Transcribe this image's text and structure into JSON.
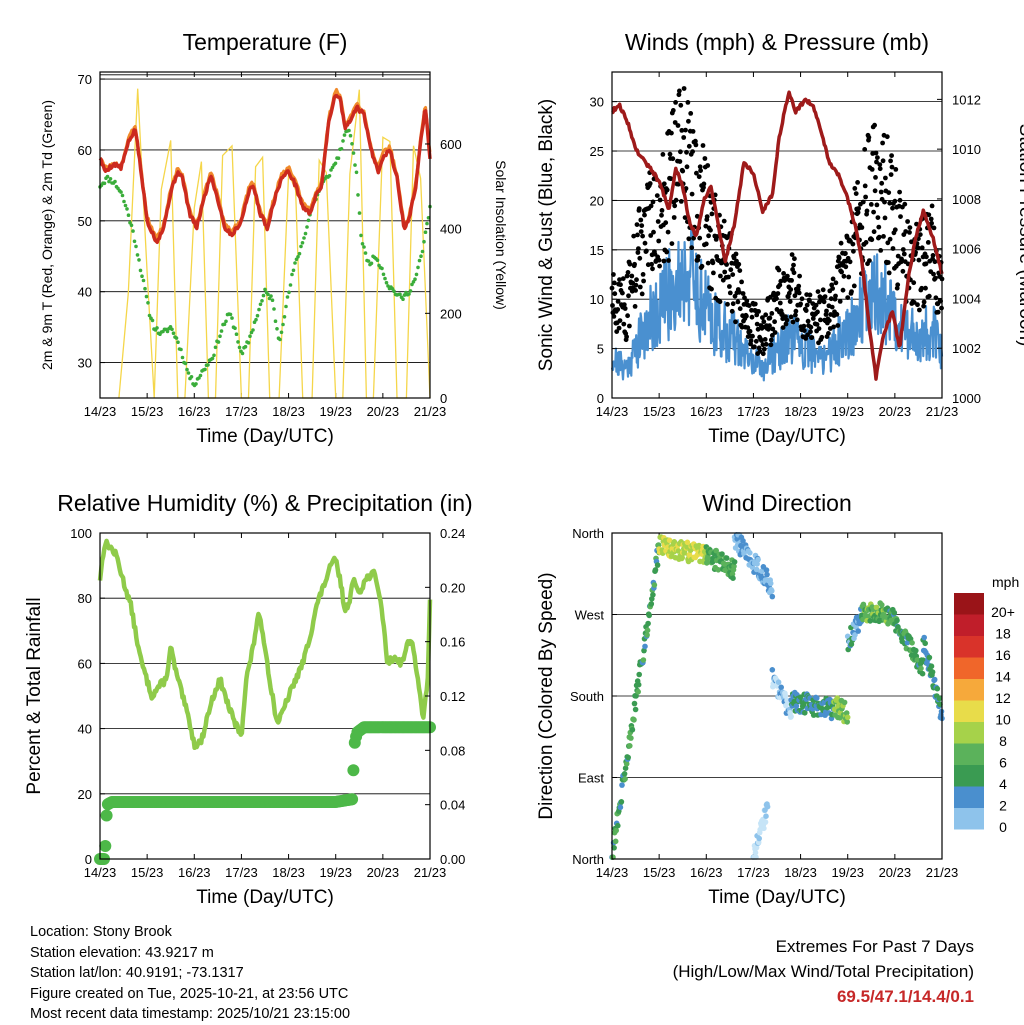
{
  "x_ticks": [
    "14/23",
    "15/23",
    "16/23",
    "17/23",
    "18/23",
    "19/23",
    "20/23",
    "21/23"
  ],
  "x_title": "Time (Day/UTC)",
  "colors": {
    "temp_red": "#cc2a1e",
    "temp_orange": "#f08a2b",
    "dew_green": "#3aad3a",
    "solar_yellow": "#f5d64a",
    "wind_blue": "#4a90d0",
    "gust_black": "#000000",
    "pressure_maroon": "#9e1a1a",
    "rh_lightgreen": "#8fcb4a",
    "precip_green": "#4db848",
    "extreme_red": "#c62828"
  },
  "chart_data": [
    {
      "type": "line",
      "title": "Temperature (F)",
      "ylabel": "2m & 9m T (Red, Orange) & 2m Td (Green)",
      "y2label": "Solar Insolation (Yellow)",
      "xlabel": "Time (Day/UTC)",
      "x_ticks": [
        "14/23",
        "15/23",
        "16/23",
        "17/23",
        "18/23",
        "19/23",
        "20/23",
        "21/23"
      ],
      "ylim": [
        25,
        71
      ],
      "yticks": [
        "30",
        "40",
        "50",
        "60",
        "70"
      ],
      "y2lim": [
        0,
        770
      ],
      "y2ticks": [
        "0",
        "200",
        "400",
        "600"
      ],
      "series": [
        {
          "name": "2m T",
          "color": "#cc2a1e",
          "x": [
            0,
            0.1,
            0.3,
            0.45,
            0.6,
            0.75,
            0.85,
            1.0,
            1.2,
            1.35,
            1.5,
            1.65,
            1.75,
            1.9,
            2.05,
            2.2,
            2.35,
            2.5,
            2.65,
            2.8,
            3.0,
            3.15,
            3.25,
            3.4,
            3.55,
            3.7,
            3.85,
            4.0,
            4.15,
            4.3,
            4.45,
            4.55,
            4.7,
            4.8,
            4.85,
            5.0,
            5.1,
            5.2,
            5.3,
            5.45,
            5.6,
            5.75,
            5.9,
            6.0,
            6.15,
            6.3,
            6.45,
            6.55,
            6.7,
            6.8,
            6.9,
            7.0
          ],
          "y": [
            59,
            57,
            58,
            57.5,
            61,
            63,
            58,
            50,
            47,
            49,
            54,
            57,
            56,
            51,
            49,
            53,
            56.5,
            53,
            49,
            48,
            50,
            54,
            55,
            51,
            49,
            53,
            56,
            57,
            55,
            52,
            51,
            53,
            55,
            61,
            64,
            68,
            67,
            63,
            64,
            66,
            65,
            60,
            57,
            59,
            60,
            56,
            49,
            50,
            55,
            61,
            66,
            59
          ]
        },
        {
          "name": "9m T",
          "color": "#f08a2b",
          "x": [
            0,
            0.1,
            0.3,
            0.45,
            0.6,
            0.75,
            0.85,
            1.0,
            1.2,
            1.35,
            1.5,
            1.65,
            1.75,
            1.9,
            2.05,
            2.2,
            2.35,
            2.5,
            2.65,
            2.8,
            3.0,
            3.15,
            3.25,
            3.4,
            3.55,
            3.7,
            3.85,
            4.0,
            4.15,
            4.3,
            4.45,
            4.55,
            4.7,
            4.8,
            4.85,
            5.0,
            5.1,
            5.2,
            5.3,
            5.45,
            5.6,
            5.75,
            5.9,
            6.0,
            6.15,
            6.3,
            6.45,
            6.55,
            6.7,
            6.8,
            6.9,
            7.0
          ],
          "y": [
            59,
            57.5,
            58,
            57.8,
            61.5,
            63.5,
            58.5,
            50.5,
            47.5,
            49.5,
            54.5,
            57.5,
            56.5,
            51.5,
            49.5,
            53.5,
            57,
            53.5,
            49.5,
            48.5,
            50.5,
            54.5,
            55.5,
            51.5,
            49.5,
            53.5,
            56.5,
            57.5,
            55.5,
            52.5,
            51.5,
            53.5,
            55.5,
            61.5,
            64.5,
            68.5,
            67.5,
            63.5,
            64.5,
            66.5,
            65.5,
            60.5,
            57.5,
            59.5,
            60.5,
            56.5,
            49.5,
            50.5,
            55.5,
            61.5,
            66.5,
            59.5
          ]
        },
        {
          "name": "2m Td",
          "color": "#3aad3a",
          "x": [
            0,
            0.15,
            0.3,
            0.45,
            0.6,
            0.75,
            0.9,
            1.05,
            1.15,
            1.3,
            1.5,
            1.65,
            1.8,
            1.9,
            2.0,
            2.2,
            2.4,
            2.5,
            2.6,
            2.75,
            2.9,
            3.0,
            3.15,
            3.3,
            3.5,
            3.65,
            3.8,
            3.95,
            4.1,
            4.3,
            4.5,
            4.7,
            4.9,
            5.05,
            5.15,
            5.25,
            5.35,
            5.45,
            5.55,
            5.7,
            5.85,
            6.0,
            6.1,
            6.25,
            6.4,
            6.55,
            6.7,
            6.85,
            7.0
          ],
          "y": [
            55,
            56,
            55.5,
            54,
            51,
            47,
            42,
            37,
            35,
            34,
            35,
            33,
            30,
            28,
            27,
            29,
            31,
            33,
            35,
            37,
            34,
            31,
            33,
            36,
            40,
            39,
            33,
            38,
            43,
            47,
            52,
            55,
            57,
            59,
            61,
            63,
            61,
            56,
            47,
            44,
            45,
            43,
            41,
            40,
            39,
            40,
            42,
            46,
            52
          ]
        },
        {
          "name": "Solar Insolation",
          "color": "#f5d64a",
          "axis": "right",
          "x": [
            0.4,
            0.6,
            0.8,
            1.0,
            1.15,
            1.3,
            1.5,
            1.65,
            1.8,
            2.0,
            2.15,
            2.3,
            2.45,
            2.6,
            2.8,
            3.0,
            3.15,
            3.3,
            3.45,
            3.6,
            3.8,
            4.0,
            4.15,
            4.3,
            4.5,
            4.65,
            4.8,
            5.0,
            5.15,
            5.3,
            5.5,
            5.65,
            5.8,
            6.0,
            6.15,
            6.3,
            6.5,
            6.65,
            6.8,
            7.0
          ],
          "y": [
            0,
            250,
            760,
            300,
            0,
            500,
            650,
            0,
            0,
            450,
            560,
            0,
            0,
            600,
            620,
            0,
            0,
            580,
            600,
            0,
            0,
            560,
            540,
            0,
            0,
            600,
            580,
            0,
            0,
            560,
            770,
            0,
            0,
            640,
            620,
            0,
            0,
            600,
            560,
            0
          ]
        }
      ]
    },
    {
      "type": "line",
      "title": "Winds (mph) & Pressure (mb)",
      "ylabel": "Sonic Wind & Gust (Blue, Black)",
      "y2label": "Station Pressure (Maroon)",
      "xlabel": "Time (Day/UTC)",
      "x_ticks": [
        "14/23",
        "15/23",
        "16/23",
        "17/23",
        "18/23",
        "19/23",
        "20/23",
        "21/23"
      ],
      "ylim": [
        0,
        33
      ],
      "yticks": [
        "0",
        "5",
        "10",
        "15",
        "20",
        "25",
        "30"
      ],
      "y2lim": [
        1000,
        1013.1
      ],
      "y2ticks": [
        "1000",
        "1002",
        "1004",
        "1006",
        "1008",
        "1010",
        "1012"
      ],
      "series": [
        {
          "name": "Sonic Wind",
          "color": "#4a90d0",
          "x": [
            0,
            0.3,
            0.6,
            0.8,
            1.0,
            1.3,
            1.6,
            1.8,
            2.0,
            2.3,
            2.6,
            2.9,
            3.2,
            3.5,
            3.8,
            4.1,
            4.4,
            4.7,
            5.0,
            5.3,
            5.6,
            5.9,
            6.2,
            6.5,
            6.8,
            7.0
          ],
          "y": [
            4,
            3,
            6,
            8,
            9,
            11,
            13,
            11,
            9,
            7,
            6,
            4,
            3,
            5,
            6,
            5,
            4,
            5,
            7,
            9,
            11,
            9,
            7,
            6,
            7,
            4
          ]
        },
        {
          "name": "Gust",
          "color": "#000000",
          "x": [
            0,
            0.3,
            0.6,
            0.8,
            1.0,
            1.3,
            1.6,
            1.8,
            2.0,
            2.3,
            2.6,
            2.9,
            3.2,
            3.5,
            3.8,
            4.1,
            4.4,
            4.7,
            5.0,
            5.3,
            5.6,
            5.9,
            6.2,
            6.5,
            6.8,
            7.0
          ],
          "y": [
            10,
            9,
            15,
            17,
            18,
            22,
            25,
            21,
            18,
            14,
            12,
            8,
            6,
            10,
            11,
            9,
            8,
            9,
            14,
            18,
            22,
            19,
            15,
            13,
            15,
            11
          ]
        },
        {
          "name": "Station Pressure",
          "color": "#9e1a1a",
          "axis": "right",
          "x": [
            0,
            0.15,
            0.35,
            0.5,
            0.7,
            0.9,
            1.05,
            1.2,
            1.35,
            1.5,
            1.65,
            1.8,
            1.95,
            2.1,
            2.25,
            2.4,
            2.6,
            2.8,
            3.0,
            3.2,
            3.4,
            3.55,
            3.75,
            3.9,
            4.1,
            4.25,
            4.4,
            4.6,
            4.8,
            5.0,
            5.15,
            5.3,
            5.45,
            5.6,
            5.75,
            5.95,
            6.1,
            6.3,
            6.45,
            6.6,
            6.8,
            7.0
          ],
          "y": [
            1011.5,
            1011.8,
            1011.0,
            1010.0,
            1009.5,
            1009.0,
            1008.5,
            1007.5,
            1009.2,
            1008.5,
            1007.0,
            1006.5,
            1008.0,
            1008.5,
            1007.0,
            1005.5,
            1007.0,
            1009.5,
            1009.0,
            1007.5,
            1008.2,
            1010.5,
            1012.3,
            1011.5,
            1012.0,
            1011.8,
            1011.0,
            1009.5,
            1009.0,
            1008.0,
            1007.0,
            1005.5,
            1003.0,
            1000.8,
            1002.5,
            1003.5,
            1002.0,
            1005.0,
            1006.5,
            1007.5,
            1006.5,
            1005.0
          ]
        }
      ]
    },
    {
      "type": "line",
      "title": "Relative Humidity (%) & Precipitation (in)",
      "ylabel": "Percent & Total Rainfall",
      "xlabel": "Time (Day/UTC)",
      "x_ticks": [
        "14/23",
        "15/23",
        "16/23",
        "17/23",
        "18/23",
        "19/23",
        "20/23",
        "21/23"
      ],
      "ylim": [
        0,
        100
      ],
      "yticks": [
        "0",
        "20",
        "40",
        "60",
        "80",
        "100"
      ],
      "y2lim": [
        0,
        0.24
      ],
      "y2ticks": [
        "0.00",
        "0.04",
        "0.08",
        "0.12",
        "0.16",
        "0.20",
        "0.24"
      ],
      "series": [
        {
          "name": "Relative Humidity",
          "color": "#8fcb4a",
          "x": [
            0,
            0.1,
            0.2,
            0.35,
            0.5,
            0.65,
            0.75,
            0.85,
            0.95,
            1.1,
            1.25,
            1.4,
            1.5,
            1.6,
            1.75,
            1.9,
            2.0,
            2.15,
            2.3,
            2.45,
            2.55,
            2.7,
            2.85,
            3.0,
            3.1,
            3.25,
            3.35,
            3.45,
            3.6,
            3.75,
            3.85,
            4.0,
            4.15,
            4.3,
            4.45,
            4.6,
            4.75,
            4.9,
            5.0,
            5.1,
            5.2,
            5.3,
            5.35,
            5.4,
            5.5,
            5.65,
            5.8,
            5.95,
            6.1,
            6.25,
            6.4,
            6.5,
            6.6,
            6.75,
            6.85,
            6.95,
            7.0
          ],
          "y": [
            86,
            97,
            96,
            93,
            85,
            78,
            70,
            62,
            57,
            50,
            53,
            55,
            65,
            58,
            50,
            42,
            35,
            36,
            45,
            52,
            55,
            48,
            42,
            38,
            55,
            65,
            75,
            70,
            55,
            42,
            44,
            50,
            55,
            60,
            68,
            78,
            84,
            90,
            92,
            85,
            76,
            80,
            84,
            85,
            82,
            86,
            88,
            80,
            60,
            62,
            60,
            65,
            68,
            55,
            42,
            55,
            79
          ]
        },
        {
          "name": "Total Precipitation",
          "color": "#4db848",
          "axis": "right",
          "x": [
            0,
            0.1,
            0.15,
            0.25,
            0.5,
            1.0,
            2.0,
            3.0,
            4.0,
            5.0,
            5.35,
            5.4,
            5.45,
            5.6,
            6.0,
            6.5,
            7.0
          ],
          "y": [
            0,
            0,
            0.04,
            0.042,
            0.042,
            0.042,
            0.042,
            0.042,
            0.042,
            0.042,
            0.044,
            0.085,
            0.093,
            0.097,
            0.097,
            0.097,
            0.097
          ]
        }
      ]
    },
    {
      "type": "scatter",
      "title": "Wind Direction",
      "ylabel": "Direction (Colored By Speed)",
      "xlabel": "Time (Day/UTC)",
      "x_ticks": [
        "14/23",
        "15/23",
        "16/23",
        "17/23",
        "18/23",
        "19/23",
        "20/23",
        "21/23"
      ],
      "ylim": [
        0,
        360
      ],
      "yticks": [
        "North",
        "East",
        "South",
        "West",
        "North"
      ],
      "legend_title": "mph",
      "legend_labels": [
        "0",
        "2",
        "4",
        "6",
        "8",
        "10",
        "12",
        "14",
        "16",
        "18",
        "20+"
      ],
      "legend_colors": [
        "#c6e4f7",
        "#8ec3eb",
        "#4a8fce",
        "#3a9b52",
        "#5bb25b",
        "#a6d24a",
        "#e8dc4a",
        "#f6a93b",
        "#f0662a",
        "#d9332a",
        "#c01e2a",
        "#9a1418"
      ],
      "series": [
        {
          "name": "Direction",
          "segments": [
            {
              "x0": 0.0,
              "x1": 1.0,
              "y0": 2,
              "y1": 345,
              "speed": 6
            },
            {
              "x0": 1.0,
              "x1": 2.0,
              "y0": 345,
              "y1": 335,
              "speed": 11
            },
            {
              "x0": 2.0,
              "x1": 2.6,
              "y0": 335,
              "y1": 320,
              "speed": 7
            },
            {
              "x0": 2.6,
              "x1": 3.4,
              "y0": 355,
              "y1": 300,
              "speed": 3
            },
            {
              "x0": 3.0,
              "x1": 3.3,
              "y0": 0,
              "y1": 60,
              "speed": 1
            },
            {
              "x0": 3.4,
              "x1": 3.8,
              "y0": 200,
              "y1": 160,
              "speed": 2
            },
            {
              "x0": 3.8,
              "x1": 4.7,
              "y0": 175,
              "y1": 165,
              "speed": 5
            },
            {
              "x0": 4.7,
              "x1": 5.0,
              "y0": 170,
              "y1": 160,
              "speed": 9
            },
            {
              "x0": 5.0,
              "x1": 5.3,
              "y0": 240,
              "y1": 270,
              "speed": 4
            },
            {
              "x0": 5.3,
              "x1": 5.9,
              "y0": 275,
              "y1": 270,
              "speed": 8
            },
            {
              "x0": 5.9,
              "x1": 6.6,
              "y0": 270,
              "y1": 210,
              "speed": 6
            },
            {
              "x0": 6.6,
              "x1": 7.0,
              "y0": 240,
              "y1": 160,
              "speed": 5
            }
          ]
        }
      ]
    }
  ],
  "info": {
    "location": "Location: Stony Brook",
    "elevation": "Station elevation: 43.9217 m",
    "latlon": "Station lat/lon: 40.9191; -73.1317",
    "created": "Figure created on Tue, 2025-10-21, at 23:56 UTC",
    "recent": "Most recent data timestamp: 2025/10/21 23:15:00"
  },
  "extremes": {
    "title": "Extremes For Past 7 Days",
    "subtitle": "(High/Low/Max Wind/Total Precipitation)",
    "value": "69.5/47.1/14.4/0.1"
  }
}
